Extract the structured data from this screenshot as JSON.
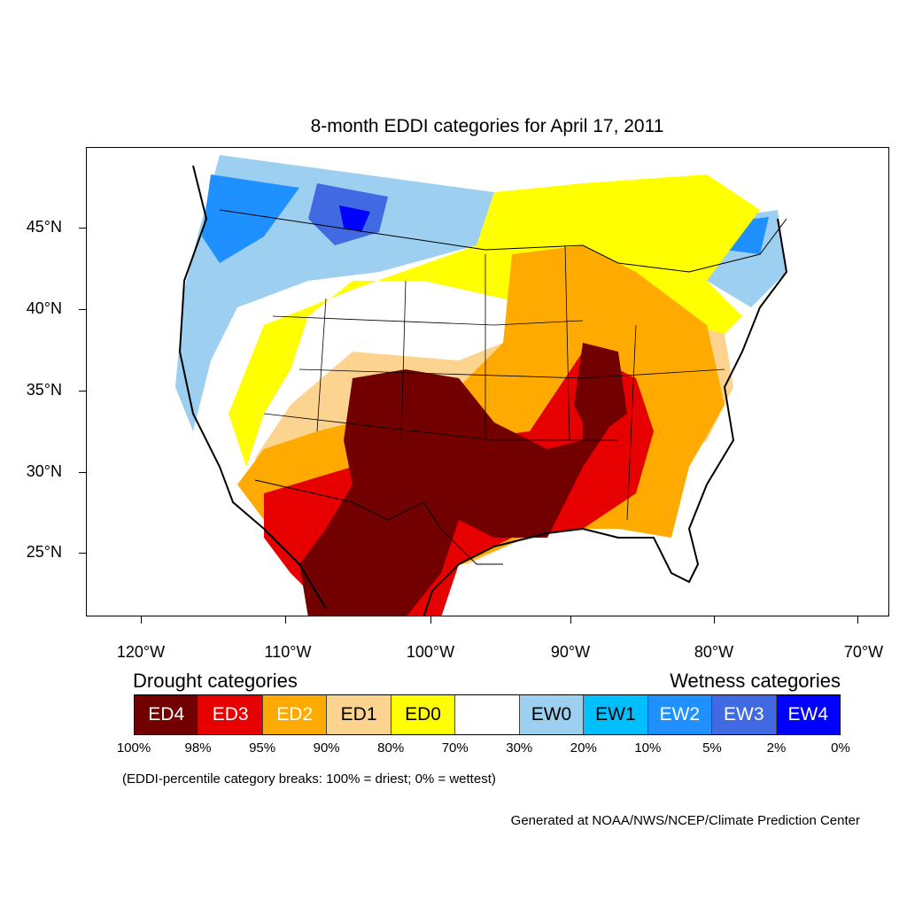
{
  "title": "8-month EDDI categories for April 17, 2011",
  "lat_labels": [
    "45°N",
    "40°N",
    "35°N",
    "30°N",
    "25°N"
  ],
  "lon_labels": [
    "120°W",
    "110°W",
    "100°W",
    "90°W",
    "80°W",
    "70°W"
  ],
  "legend": {
    "drought_heading": "Drought categories",
    "wetness_heading": "Wetness categories",
    "categories": [
      {
        "label": "ED4",
        "color": "#730000",
        "text_color": "#ffffff"
      },
      {
        "label": "ED3",
        "color": "#e60000",
        "text_color": "#ffffff"
      },
      {
        "label": "ED2",
        "color": "#ffaa00",
        "text_color": "#ffffff"
      },
      {
        "label": "ED1",
        "color": "#fcd38f",
        "text_color": "#000000"
      },
      {
        "label": "ED0",
        "color": "#ffff00",
        "text_color": "#000000"
      },
      {
        "label": "",
        "color": "#ffffff",
        "text_color": "#000000"
      },
      {
        "label": "EW0",
        "color": "#9ccff0",
        "text_color": "#000000"
      },
      {
        "label": "EW1",
        "color": "#00bfff",
        "text_color": "#000000"
      },
      {
        "label": "EW2",
        "color": "#1e90ff",
        "text_color": "#ffffff"
      },
      {
        "label": "EW3",
        "color": "#4169e1",
        "text_color": "#ffffff"
      },
      {
        "label": "EW4",
        "color": "#0000ff",
        "text_color": "#ffffff"
      }
    ],
    "breaks": [
      "100%",
      "98%",
      "95%",
      "90%",
      "80%",
      "70%",
      "30%",
      "20%",
      "10%",
      "5%",
      "2%",
      "0%"
    ]
  },
  "note": "(EDDI-percentile category breaks: 100% = driest; 0% = wettest)",
  "credit": "Generated at NOAA/NWS/NCEP/Climate Prediction Center"
}
